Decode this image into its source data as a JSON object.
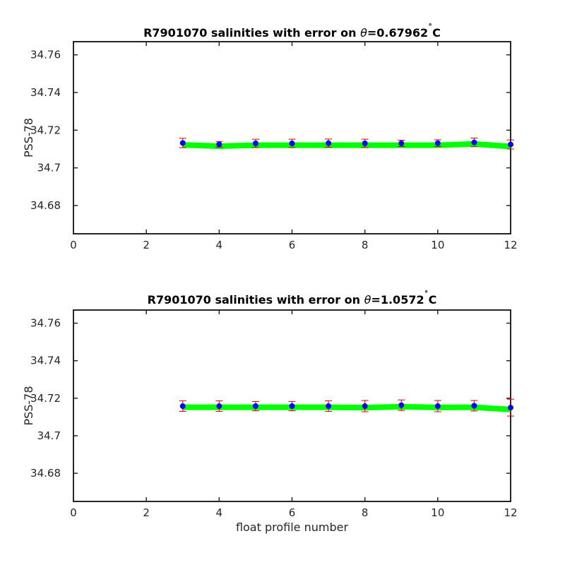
{
  "chart_data": [
    {
      "type": "line",
      "title_prefix": "R7901070 salinities with error on ",
      "title_symbol": "θ",
      "title_value": "=0.67962",
      "title_degree": "˚",
      "title_unit": "C",
      "xlabel": "",
      "ylabel": "PSS-78",
      "xlim": [
        0,
        12
      ],
      "ylim": [
        34.665,
        34.767
      ],
      "xticks": [
        0,
        2,
        4,
        6,
        8,
        10,
        12
      ],
      "xtick_labels": [
        "0",
        "2",
        "4",
        "6",
        "8",
        "10",
        "12"
      ],
      "yticks": [
        34.68,
        34.7,
        34.72,
        34.74,
        34.76
      ],
      "ytick_labels": [
        "34.68",
        "34.7",
        "34.72",
        "34.74",
        "34.76"
      ],
      "grid": false,
      "colors": {
        "line": "#00ff00",
        "points": "#0000ff",
        "errorbars": "#cc0000",
        "axes": "#262626"
      },
      "series": [
        {
          "x": [
            3,
            4,
            5,
            6,
            7,
            8,
            9,
            10,
            11,
            12
          ],
          "line": [
            34.7122,
            34.7115,
            34.712,
            34.712,
            34.712,
            34.712,
            34.712,
            34.712,
            34.7127,
            34.7113
          ],
          "points": [
            34.7132,
            34.7125,
            34.713,
            34.713,
            34.7131,
            34.713,
            34.713,
            34.7131,
            34.7135,
            34.7124
          ],
          "error": [
            0.0025,
            0.0015,
            0.0022,
            0.0022,
            0.0022,
            0.0022,
            0.0017,
            0.0018,
            0.0023,
            0.0024
          ]
        }
      ]
    },
    {
      "type": "line",
      "title_prefix": "R7901070 salinities with error on ",
      "title_symbol": "θ",
      "title_value": "=1.0572",
      "title_degree": "˚",
      "title_unit": "C",
      "xlabel": "float profile number",
      "ylabel": "PSS-78",
      "xlim": [
        0,
        12
      ],
      "ylim": [
        34.665,
        34.767
      ],
      "xticks": [
        0,
        2,
        4,
        6,
        8,
        10,
        12
      ],
      "xtick_labels": [
        "0",
        "2",
        "4",
        "6",
        "8",
        "10",
        "12"
      ],
      "yticks": [
        34.68,
        34.7,
        34.72,
        34.74,
        34.76
      ],
      "ytick_labels": [
        "34.68",
        "34.7",
        "34.72",
        "34.74",
        "34.76"
      ],
      "grid": false,
      "colors": {
        "line": "#00ff00",
        "points": "#0000ff",
        "errorbars": "#cc0000",
        "axes": "#262626"
      },
      "series": [
        {
          "x": [
            3,
            4,
            5,
            6,
            7,
            8,
            9,
            10,
            11,
            12
          ],
          "line": [
            34.7152,
            34.7152,
            34.7152,
            34.7152,
            34.7152,
            34.715,
            34.7155,
            34.7151,
            34.7152,
            34.714
          ],
          "points": [
            34.7158,
            34.7158,
            34.7158,
            34.7158,
            34.7158,
            34.7158,
            34.7163,
            34.7158,
            34.716,
            34.715
          ],
          "error": [
            0.0028,
            0.0028,
            0.0025,
            0.0025,
            0.0028,
            0.003,
            0.0028,
            0.003,
            0.0028,
            0.0045
          ]
        }
      ]
    }
  ]
}
